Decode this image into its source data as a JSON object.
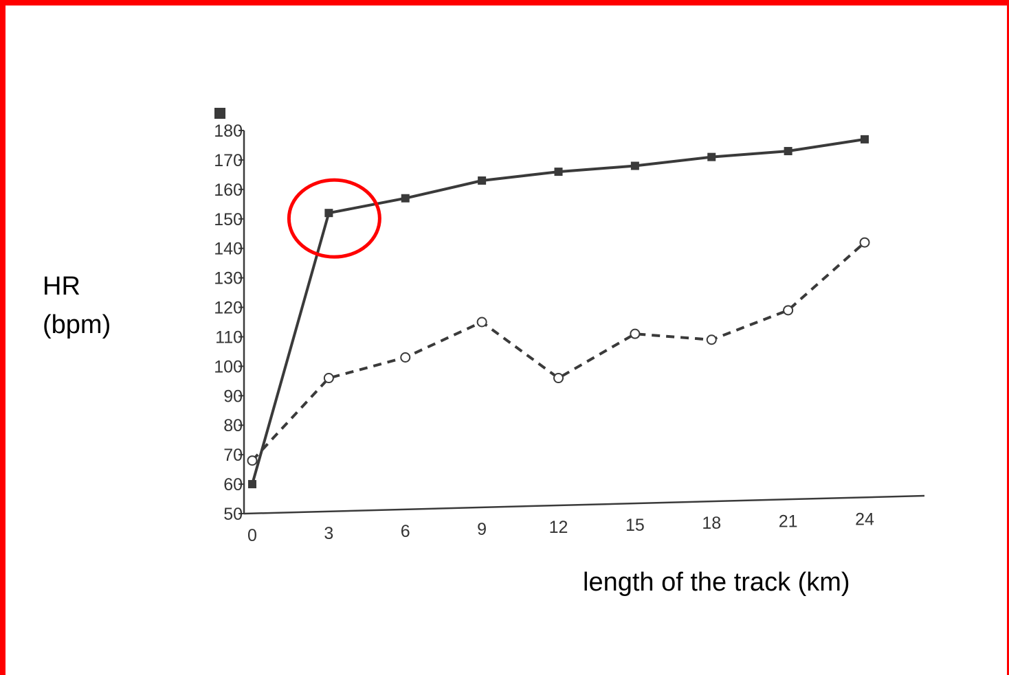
{
  "chart_data": {
    "type": "line",
    "title": "",
    "ylabel_lines": [
      "HR",
      "(bpm)"
    ],
    "xlabel": "length of the track (km)",
    "x": [
      0,
      3,
      6,
      9,
      12,
      15,
      18,
      21,
      24
    ],
    "xlim": [
      0,
      24
    ],
    "ylim": [
      50,
      180
    ],
    "yticks": [
      50,
      60,
      70,
      80,
      90,
      100,
      110,
      120,
      130,
      140,
      150,
      160,
      170,
      180
    ],
    "xticks": [
      0,
      3,
      6,
      9,
      12,
      15,
      18,
      21,
      24
    ],
    "grid": false,
    "series": [
      {
        "marker": "filled-square",
        "line_style": "solid",
        "color": "#3a3a3a",
        "values": [
          60,
          152,
          157,
          163,
          166,
          168,
          171,
          173,
          177
        ]
      },
      {
        "marker": "open-circle",
        "line_style": "dashed",
        "color": "#3a3a3a",
        "values": [
          68,
          96,
          103,
          115,
          96,
          111,
          109,
          119,
          142
        ]
      }
    ],
    "annotations": [
      {
        "type": "circle",
        "color": "#ff0000",
        "x": 3,
        "y": 152
      }
    ],
    "legend_marker": "filled-square"
  },
  "colors": {
    "frame": "#ff0000",
    "ink": "#3a3a3a",
    "highlight": "#ff0000"
  }
}
